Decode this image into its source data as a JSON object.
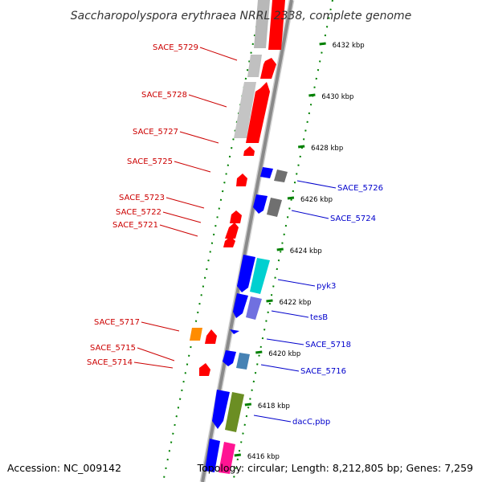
{
  "title": "Saccharopolyspora erythraea NRRL 2338, complete genome",
  "accession": "Accession: NC_009142",
  "topology": "Topology: circular; Length: 8,212,805 bp; Genes: 7,259",
  "colors": {
    "cds_red": "#ff0000",
    "cds_grey": "#b3b3b3",
    "cds_blue": "#0000ff",
    "cds_darkgrey": "#707070",
    "cds_cyan": "#00d0d0",
    "cds_purple": "#7070e0",
    "cds_orange": "#ff8c00",
    "cds_steel": "#4682b4",
    "cds_olive": "#6b8e23",
    "cds_pink": "#ff1493",
    "ruler_ticks": "#008000",
    "label_red": "#cc0000",
    "label_blue": "#0000cc"
  },
  "ruler": {
    "ticks": [
      {
        "label": "6432 kbp",
        "pos_kbp": 6432
      },
      {
        "label": "6430 kbp",
        "pos_kbp": 6430
      },
      {
        "label": "6428 kbp",
        "pos_kbp": 6428
      },
      {
        "label": "6426 kbp",
        "pos_kbp": 6426
      },
      {
        "label": "6424 kbp",
        "pos_kbp": 6424
      },
      {
        "label": "6422 kbp",
        "pos_kbp": 6422
      },
      {
        "label": "6420 kbp",
        "pos_kbp": 6420
      },
      {
        "label": "6418 kbp",
        "pos_kbp": 6418
      },
      {
        "label": "6416 kbp",
        "pos_kbp": 6416
      }
    ]
  },
  "left_labels": [
    {
      "text": "SACE_5729"
    },
    {
      "text": "SACE_5728"
    },
    {
      "text": "SACE_5727"
    },
    {
      "text": "SACE_5725"
    },
    {
      "text": "SACE_5723"
    },
    {
      "text": "SACE_5722"
    },
    {
      "text": "SACE_5721"
    },
    {
      "text": "SACE_5717"
    },
    {
      "text": "SACE_5715"
    },
    {
      "text": "SACE_5714"
    }
  ],
  "right_labels": [
    {
      "text": "SACE_5726"
    },
    {
      "text": "SACE_5724"
    },
    {
      "text": "pyk3"
    },
    {
      "text": "tesB"
    },
    {
      "text": "SACE_5718"
    },
    {
      "text": "SACE_5716"
    },
    {
      "text": "dacC,pbp"
    }
  ]
}
